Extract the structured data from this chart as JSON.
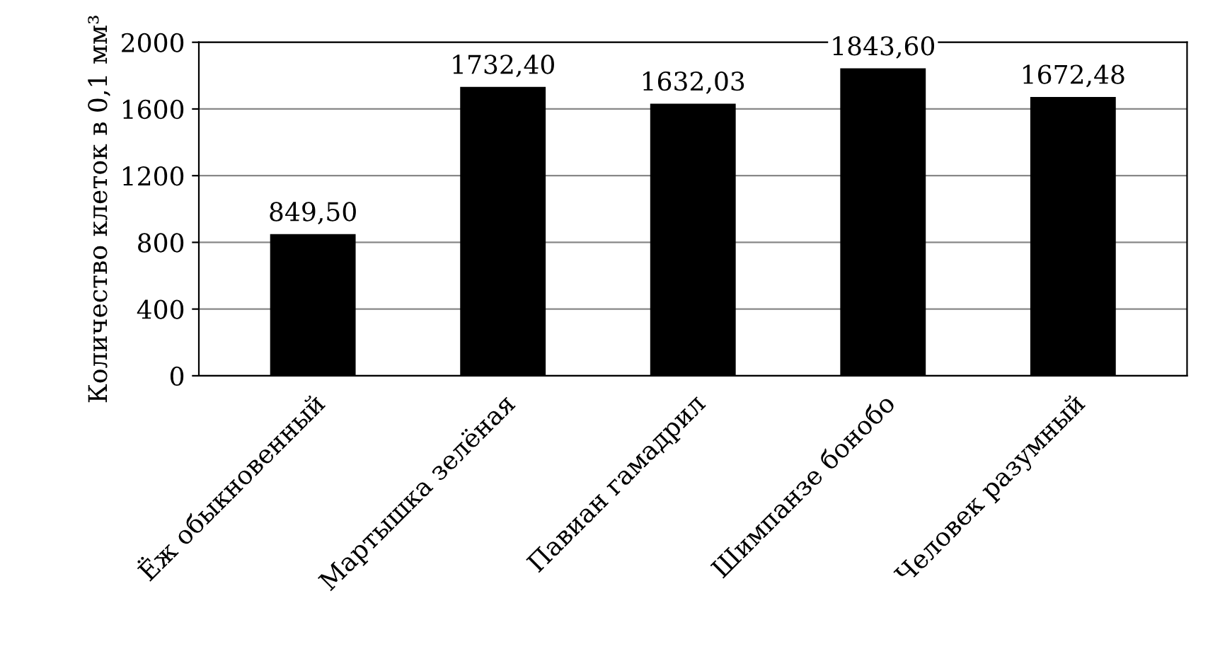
{
  "chart_data": {
    "type": "bar",
    "ylabel": "Количество клеток в 0,1 мм³",
    "categories": [
      "Ёж обыкновенный",
      "Мартышка зелёная",
      "Павиан гамадрил",
      "Шимпанзе бонобо",
      "Человек разумный"
    ],
    "values": [
      849.5,
      1732.4,
      1632.03,
      1843.6,
      1672.48
    ],
    "value_labels": [
      "849,50",
      "1732,40",
      "1632,03",
      "1843,60",
      "1672,48"
    ],
    "color": "#000000",
    "ylim": [
      0,
      2000
    ],
    "yticks": [
      0,
      400,
      800,
      1200,
      1600,
      2000
    ],
    "grid": "y"
  }
}
